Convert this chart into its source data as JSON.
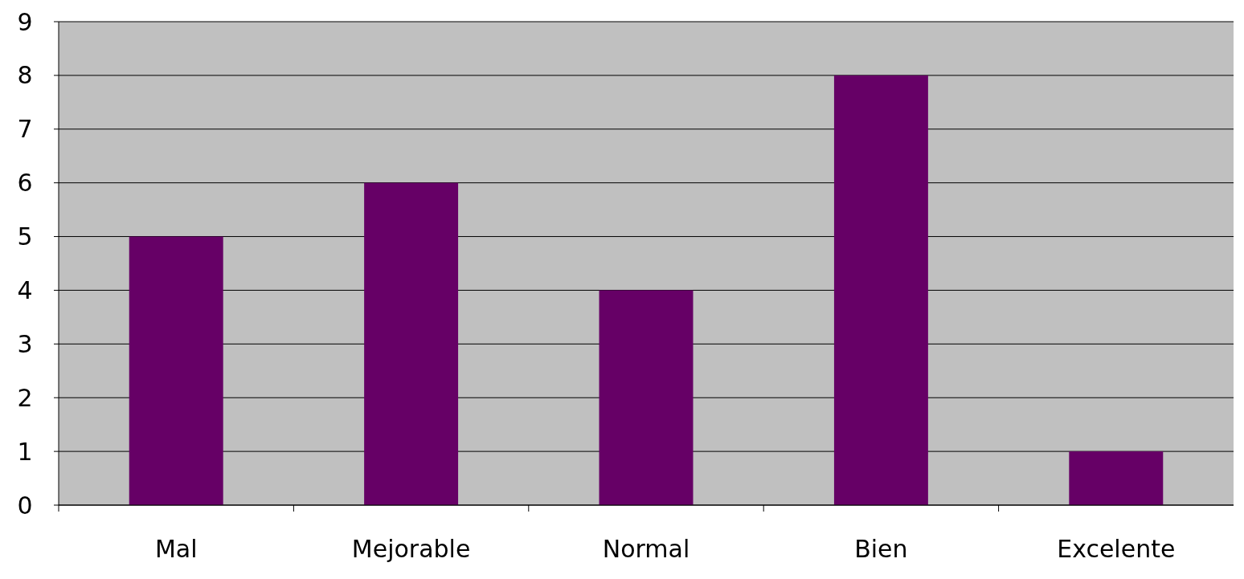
{
  "chart_data": {
    "type": "bar",
    "categories": [
      "Mal",
      "Mejorable",
      "Normal",
      "Bien",
      "Excelente"
    ],
    "values": [
      5,
      6,
      4,
      8,
      1
    ],
    "color": "#660066",
    "ylim": [
      0,
      9
    ],
    "yticks": [
      0,
      1,
      2,
      3,
      4,
      5,
      6,
      7,
      8,
      9
    ],
    "grid": "y"
  }
}
